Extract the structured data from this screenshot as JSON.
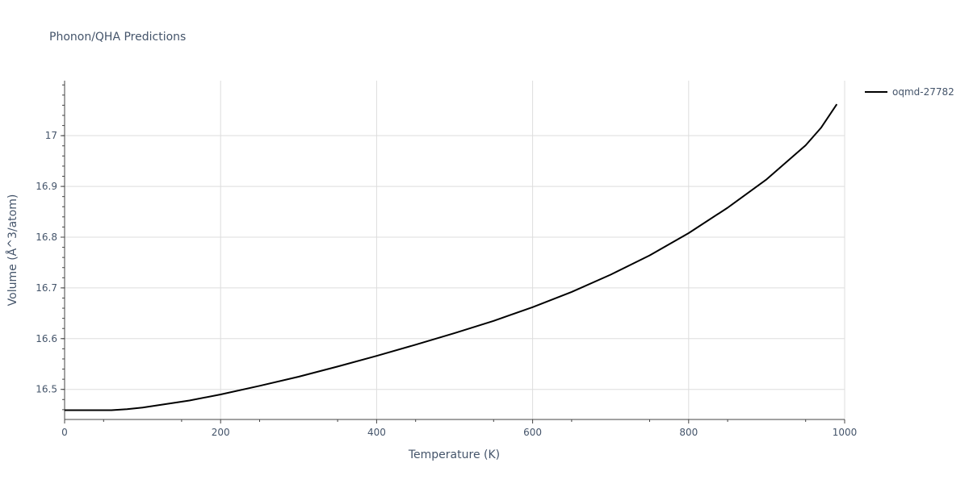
{
  "chart_data": {
    "type": "line",
    "title": "Phonon/QHA Predictions",
    "xlabel": "Temperature (K)",
    "ylabel": "Volume (Å^3/atom)",
    "xlim": [
      0,
      1000
    ],
    "ylim": [
      16.4407,
      17.1084
    ],
    "x_ticks": [
      0,
      200,
      400,
      600,
      800,
      1000
    ],
    "y_ticks": [
      16.5,
      16.6,
      16.7,
      16.8,
      16.9,
      17
    ],
    "x_tick_labels": [
      "0",
      "200",
      "400",
      "600",
      "800",
      "1000"
    ],
    "y_tick_labels": [
      "16.5",
      "16.6",
      "16.7",
      "16.8",
      "16.9",
      "17"
    ],
    "grid": true,
    "legend_position": "top-right",
    "series": [
      {
        "name": "oqmd-27782",
        "color": "#000000",
        "x": [
          0,
          20,
          40,
          60,
          80,
          100,
          130,
          160,
          200,
          250,
          300,
          350,
          400,
          450,
          500,
          550,
          600,
          650,
          700,
          750,
          800,
          850,
          900,
          950,
          970,
          990
        ],
        "y": [
          16.459,
          16.459,
          16.459,
          16.459,
          16.461,
          16.464,
          16.471,
          16.478,
          16.49,
          16.507,
          16.525,
          16.545,
          16.566,
          16.588,
          16.611,
          16.635,
          16.662,
          16.692,
          16.726,
          16.764,
          16.808,
          16.858,
          16.914,
          16.981,
          17.016,
          17.062
        ]
      }
    ]
  }
}
